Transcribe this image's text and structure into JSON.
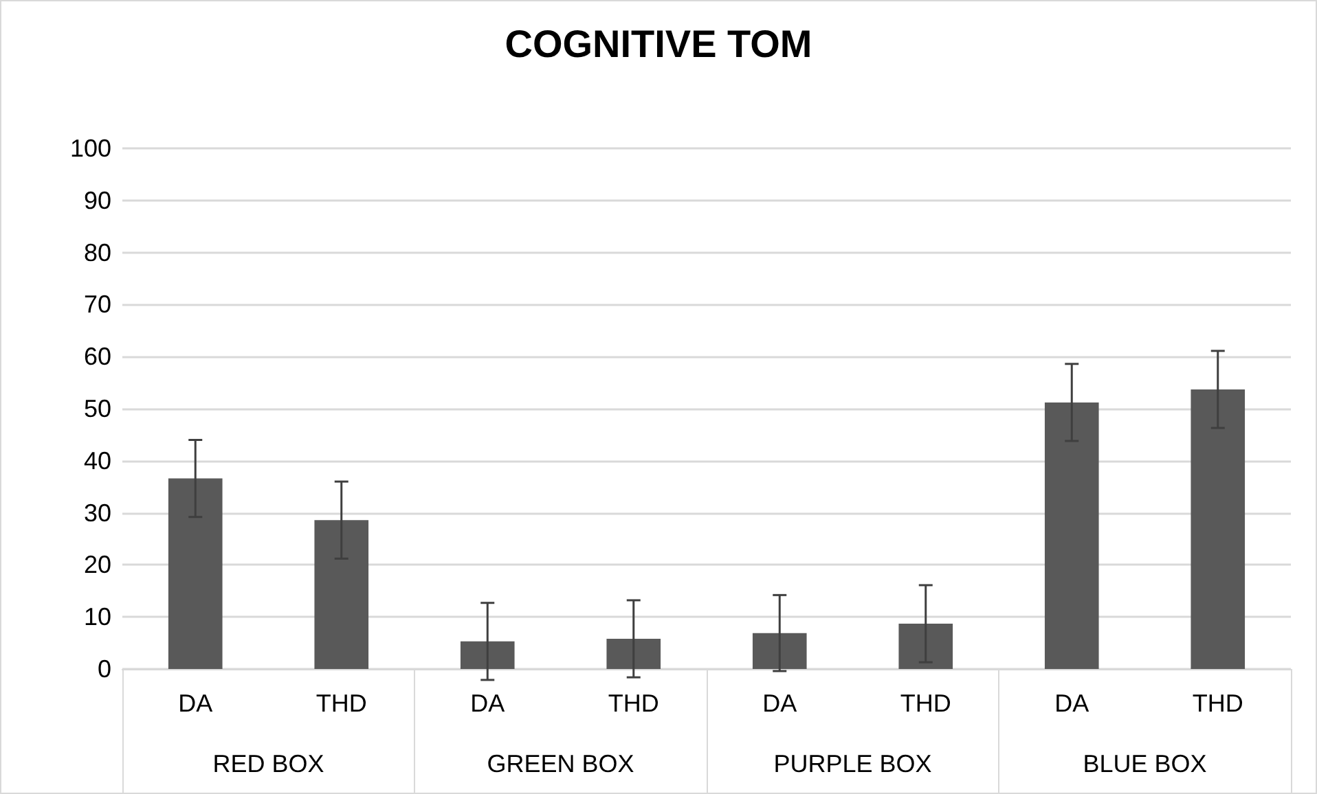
{
  "chart_data": {
    "type": "bar",
    "title": "COGNITIVE TOM",
    "categories": [
      "DA",
      "THD",
      "DA",
      "THD",
      "DA",
      "THD",
      "DA",
      "THD"
    ],
    "annotations": [
      "RED BOX",
      "GREEN BOX",
      "PURPLE BOX",
      "BLUE BOX"
    ],
    "values": [
      36.6,
      28.6,
      5.3,
      5.8,
      6.9,
      8.7,
      51.2,
      53.7
    ],
    "errors": [
      7.4,
      7.4,
      7.4,
      7.4,
      7.3,
      7.4,
      7.4,
      7.4
    ],
    "color": "#595959",
    "ylim": [
      0,
      100
    ],
    "yticks": [
      0,
      10,
      20,
      30,
      40,
      50,
      60,
      70,
      80,
      90,
      100
    ],
    "grid": "y"
  }
}
